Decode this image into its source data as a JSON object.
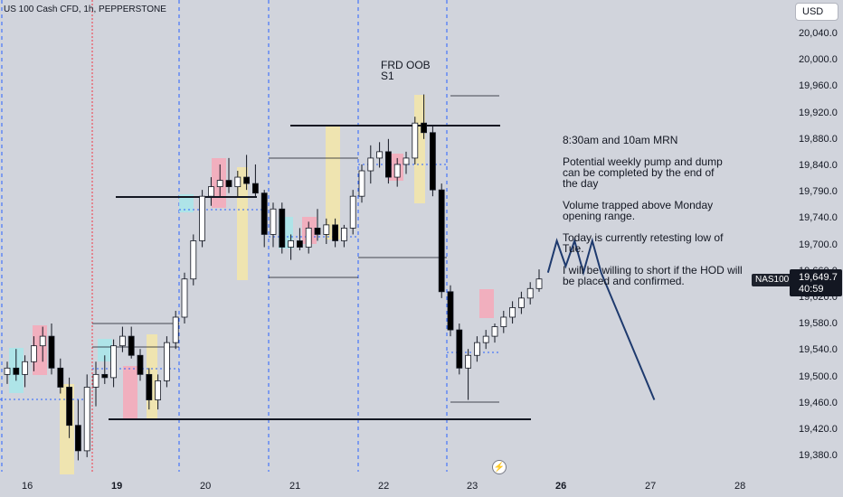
{
  "header": {
    "symbol_title": "US 100 Cash CFD, 1h, PEPPERSTONE"
  },
  "toolbar": {
    "currency_label": "USD"
  },
  "price_axis_labels": [
    "20,040.0",
    "20,000.0",
    "19,960.0",
    "19,920.0",
    "19,880.0",
    "19,840.0",
    "19,790.0",
    "19,740.0",
    "19,700.0",
    "19,660.0",
    "19,620.0",
    "19,580.0",
    "19,540.0",
    "19,500.0",
    "19,460.0",
    "19,420.0",
    "19,380.0"
  ],
  "time_axis_labels": [
    {
      "text": "16",
      "bold": false
    },
    {
      "text": "19",
      "bold": true
    },
    {
      "text": "20",
      "bold": false
    },
    {
      "text": "21",
      "bold": false
    },
    {
      "text": "22",
      "bold": false
    },
    {
      "text": "23",
      "bold": false
    },
    {
      "text": "26",
      "bold": true
    },
    {
      "text": "27",
      "bold": false
    },
    {
      "text": "28",
      "bold": false
    }
  ],
  "annotations": {
    "frd_oob": "FRD OOB\nS1",
    "notes": "8:30am and 10am MRN\n\nPotential weekly pump and dump\ncan be completed by the end of\nthe day\n\nVolume trapped above Monday\nopening range.\n\nToday is currently retesting low of\nTue.\n\nI will be willing to short if the HOD will\nbe placed and confirmed."
  },
  "last_price": {
    "symbol": "NAS100",
    "price": "19,649.7",
    "countdown": "40:59"
  },
  "colors": {
    "background": "#d1d4dc",
    "candle_up": "#ffffff",
    "candle_down": "#000000",
    "projection": "#1e3a6e",
    "session_line": "#2962ff",
    "highlight_red": "#f7a8b8",
    "highlight_yellow": "#f5e6a8",
    "highlight_cyan": "#a8e6ea"
  },
  "icons": {
    "replay": "replay-icon"
  },
  "chart_data": {
    "type": "candlestick",
    "interval": "1h",
    "ylim": [
      19350,
      20060
    ],
    "sessions": [
      "16",
      "19",
      "20",
      "21",
      "22",
      "23"
    ],
    "x_dates": [
      "16",
      "19",
      "20",
      "21",
      "22",
      "23",
      "26",
      "27",
      "28"
    ],
    "candles": [
      {
        "o": 19500,
        "h": 19520,
        "l": 19485,
        "c": 19510
      },
      {
        "o": 19510,
        "h": 19540,
        "l": 19490,
        "c": 19500
      },
      {
        "o": 19500,
        "h": 19530,
        "l": 19480,
        "c": 19520
      },
      {
        "o": 19520,
        "h": 19560,
        "l": 19505,
        "c": 19545
      },
      {
        "o": 19545,
        "h": 19575,
        "l": 19520,
        "c": 19560
      },
      {
        "o": 19560,
        "h": 19580,
        "l": 19500,
        "c": 19510
      },
      {
        "o": 19510,
        "h": 19525,
        "l": 19470,
        "c": 19480
      },
      {
        "o": 19480,
        "h": 19495,
        "l": 19400,
        "c": 19420
      },
      {
        "o": 19420,
        "h": 19460,
        "l": 19365,
        "c": 19380
      },
      {
        "o": 19380,
        "h": 19500,
        "l": 19370,
        "c": 19480
      },
      {
        "o": 19480,
        "h": 19520,
        "l": 19450,
        "c": 19500
      },
      {
        "o": 19500,
        "h": 19530,
        "l": 19485,
        "c": 19495
      },
      {
        "o": 19495,
        "h": 19555,
        "l": 19480,
        "c": 19545
      },
      {
        "o": 19545,
        "h": 19575,
        "l": 19535,
        "c": 19560
      },
      {
        "o": 19560,
        "h": 19575,
        "l": 19525,
        "c": 19530
      },
      {
        "o": 19530,
        "h": 19540,
        "l": 19490,
        "c": 19500
      },
      {
        "o": 19500,
        "h": 19510,
        "l": 19445,
        "c": 19460
      },
      {
        "o": 19460,
        "h": 19500,
        "l": 19445,
        "c": 19490
      },
      {
        "o": 19490,
        "h": 19560,
        "l": 19480,
        "c": 19550
      },
      {
        "o": 19550,
        "h": 19600,
        "l": 19540,
        "c": 19590
      },
      {
        "o": 19590,
        "h": 19660,
        "l": 19580,
        "c": 19650
      },
      {
        "o": 19650,
        "h": 19720,
        "l": 19640,
        "c": 19710
      },
      {
        "o": 19710,
        "h": 19790,
        "l": 19700,
        "c": 19780
      },
      {
        "o": 19780,
        "h": 19810,
        "l": 19765,
        "c": 19795
      },
      {
        "o": 19795,
        "h": 19830,
        "l": 19780,
        "c": 19805
      },
      {
        "o": 19805,
        "h": 19840,
        "l": 19785,
        "c": 19795
      },
      {
        "o": 19795,
        "h": 19820,
        "l": 19780,
        "c": 19810
      },
      {
        "o": 19810,
        "h": 19845,
        "l": 19790,
        "c": 19800
      },
      {
        "o": 19800,
        "h": 19830,
        "l": 19780,
        "c": 19785
      },
      {
        "o": 19785,
        "h": 19790,
        "l": 19700,
        "c": 19720
      },
      {
        "o": 19720,
        "h": 19770,
        "l": 19700,
        "c": 19760
      },
      {
        "o": 19760,
        "h": 19770,
        "l": 19690,
        "c": 19700
      },
      {
        "o": 19700,
        "h": 19720,
        "l": 19680,
        "c": 19710
      },
      {
        "o": 19710,
        "h": 19730,
        "l": 19695,
        "c": 19700
      },
      {
        "o": 19700,
        "h": 19740,
        "l": 19690,
        "c": 19730
      },
      {
        "o": 19730,
        "h": 19760,
        "l": 19710,
        "c": 19720
      },
      {
        "o": 19720,
        "h": 19745,
        "l": 19705,
        "c": 19735
      },
      {
        "o": 19735,
        "h": 19745,
        "l": 19700,
        "c": 19710
      },
      {
        "o": 19710,
        "h": 19735,
        "l": 19700,
        "c": 19730
      },
      {
        "o": 19730,
        "h": 19790,
        "l": 19720,
        "c": 19780
      },
      {
        "o": 19780,
        "h": 19830,
        "l": 19770,
        "c": 19820
      },
      {
        "o": 19820,
        "h": 19860,
        "l": 19800,
        "c": 19840
      },
      {
        "o": 19840,
        "h": 19865,
        "l": 19825,
        "c": 19850
      },
      {
        "o": 19850,
        "h": 19870,
        "l": 19800,
        "c": 19810
      },
      {
        "o": 19810,
        "h": 19840,
        "l": 19795,
        "c": 19830
      },
      {
        "o": 19830,
        "h": 19850,
        "l": 19815,
        "c": 19840
      },
      {
        "o": 19840,
        "h": 19905,
        "l": 19830,
        "c": 19895
      },
      {
        "o": 19895,
        "h": 19940,
        "l": 19870,
        "c": 19880
      },
      {
        "o": 19880,
        "h": 19890,
        "l": 19780,
        "c": 19790
      },
      {
        "o": 19790,
        "h": 19800,
        "l": 19620,
        "c": 19630
      },
      {
        "o": 19630,
        "h": 19640,
        "l": 19560,
        "c": 19570
      },
      {
        "o": 19570,
        "h": 19580,
        "l": 19500,
        "c": 19510
      },
      {
        "o": 19510,
        "h": 19540,
        "l": 19460,
        "c": 19530
      },
      {
        "o": 19530,
        "h": 19560,
        "l": 19520,
        "c": 19550
      },
      {
        "o": 19550,
        "h": 19570,
        "l": 19540,
        "c": 19560
      },
      {
        "o": 19560,
        "h": 19580,
        "l": 19550,
        "c": 19575
      },
      {
        "o": 19575,
        "h": 19600,
        "l": 19565,
        "c": 19590
      },
      {
        "o": 19590,
        "h": 19615,
        "l": 19580,
        "c": 19605
      },
      {
        "o": 19605,
        "h": 19630,
        "l": 19595,
        "c": 19620
      },
      {
        "o": 19620,
        "h": 19645,
        "l": 19610,
        "c": 19635
      },
      {
        "o": 19635,
        "h": 19665,
        "l": 19630,
        "c": 19650
      }
    ],
    "projection": [
      {
        "i": 61,
        "p": 19660
      },
      {
        "i": 62,
        "p": 19710
      },
      {
        "i": 63,
        "p": 19670
      },
      {
        "i": 64,
        "p": 19710
      },
      {
        "i": 65,
        "p": 19660
      },
      {
        "i": 66,
        "p": 19710
      },
      {
        "i": 67,
        "p": 19660
      },
      {
        "i": 73,
        "p": 19460
      }
    ],
    "levels": [
      {
        "price": 19900,
        "from": 44,
        "to": 72
      },
      {
        "price": 19780,
        "from": 17,
        "to": 37
      },
      {
        "price": 19430,
        "from": 16,
        "to": 76
      }
    ],
    "last_price": 19649.7
  }
}
